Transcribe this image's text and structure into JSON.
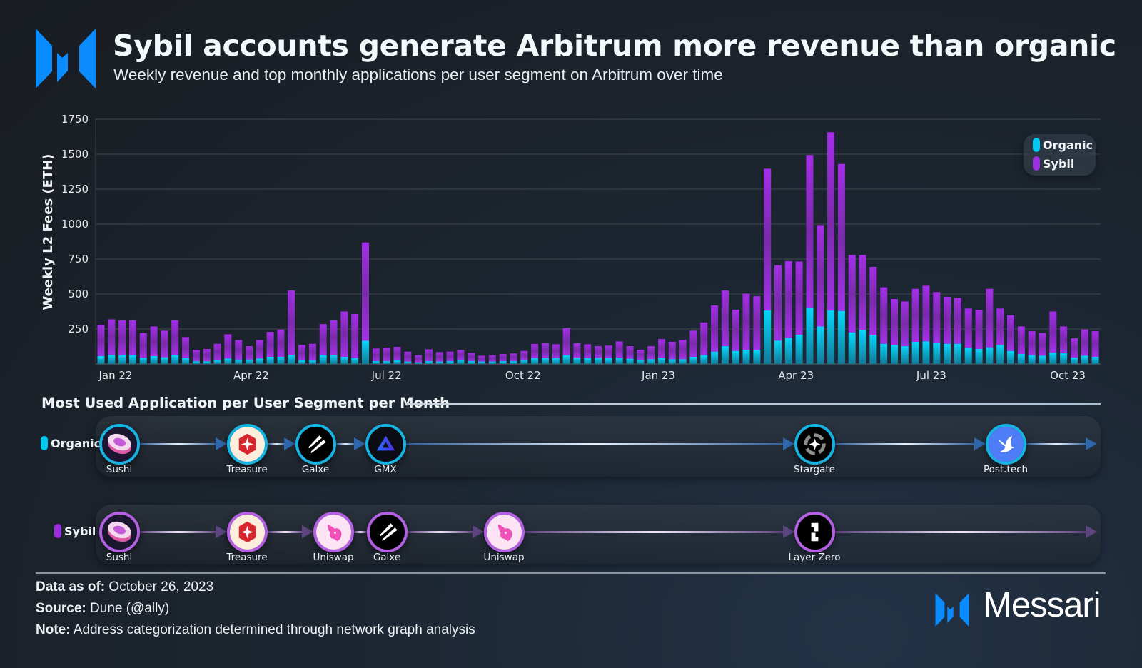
{
  "header": {
    "title": "Sybil accounts generate Arbitrum more revenue than organic",
    "subtitle": "Weekly revenue and top monthly applications per user segment on Arbitrum over time"
  },
  "colors": {
    "organic": "#00c8f0",
    "sybil": "#9b30e0",
    "brand": "#1a8cff"
  },
  "chart_data": {
    "type": "bar",
    "stacked": true,
    "ylabel": "Weekly L2 Fees (ETH)",
    "ylim": [
      0,
      1750
    ],
    "yticks": [
      "250",
      "500",
      "750",
      "1000",
      "1250",
      "1500",
      "1750"
    ],
    "xticks": [
      "Jan 22",
      "Apr 22",
      "Jul 22",
      "Oct 22",
      "Jan 23",
      "Apr 23",
      "Jul 23",
      "Oct 23"
    ],
    "grid": true,
    "legend_position": "top-right",
    "series": [
      {
        "name": "Organic",
        "values": [
          56,
          65,
          61,
          61,
          44,
          56,
          48,
          61,
          41,
          19,
          19,
          27,
          39,
          32,
          32,
          39,
          51,
          51,
          65,
          25,
          25,
          61,
          65,
          51,
          42,
          166,
          20,
          20,
          25,
          17,
          12,
          20,
          17,
          20,
          31,
          20,
          17,
          17,
          20,
          20,
          31,
          42,
          42,
          42,
          63,
          46,
          42,
          46,
          42,
          46,
          37,
          31,
          34,
          42,
          34,
          34,
          51,
          63,
          88,
          127,
          93,
          102,
          97,
          382,
          166,
          187,
          209,
          399,
          268,
          382,
          379,
          226,
          243,
          209,
          144,
          136,
          127,
          158,
          161,
          153,
          144,
          144,
          115,
          107,
          119,
          136,
          93,
          71,
          63,
          59,
          82,
          76,
          46,
          59,
          51
        ]
      },
      {
        "name": "Sybil",
        "values": [
          224,
          254,
          250,
          250,
          177,
          212,
          190,
          250,
          151,
          83,
          88,
          117,
          173,
          139,
          95,
          132,
          178,
          195,
          460,
          111,
          119,
          224,
          246,
          324,
          315,
          703,
          90,
          97,
          97,
          71,
          51,
          85,
          68,
          68,
          69,
          60,
          42,
          46,
          51,
          55,
          62,
          101,
          106,
          99,
          192,
          102,
          99,
          81,
          89,
          115,
          90,
          71,
          93,
          136,
          124,
          139,
          187,
          234,
          330,
          398,
          295,
          401,
          387,
          1014,
          540,
          548,
          523,
          1095,
          725,
          1275,
          1051,
          553,
          536,
          485,
          404,
          328,
          320,
          379,
          398,
          361,
          336,
          328,
          281,
          280,
          418,
          260,
          255,
          197,
          171,
          162,
          293,
          192,
          137,
          187,
          183
        ]
      }
    ]
  },
  "legend": {
    "organic": "Organic",
    "sybil": "Sybil"
  },
  "apps_section": {
    "title": "Most Used Application per User Segment per Month",
    "organic": {
      "label": "Organic",
      "apps": [
        {
          "name": "Sushi",
          "icon": "sushi-icon"
        },
        {
          "name": "Treasure",
          "icon": "treasure-icon"
        },
        {
          "name": "Galxe",
          "icon": "galxe-icon"
        },
        {
          "name": "GMX",
          "icon": "gmx-icon"
        },
        {
          "name": "Stargate",
          "icon": "stargate-icon"
        },
        {
          "name": "Post.tech",
          "icon": "posttech-icon"
        }
      ]
    },
    "sybil": {
      "label": "Sybil",
      "apps": [
        {
          "name": "Sushi",
          "icon": "sushi-icon"
        },
        {
          "name": "Treasure",
          "icon": "treasure-icon"
        },
        {
          "name": "Uniswap",
          "icon": "uniswap-icon"
        },
        {
          "name": "Galxe",
          "icon": "galxe-icon"
        },
        {
          "name": "Uniswap",
          "icon": "uniswap-icon"
        },
        {
          "name": "Layer Zero",
          "icon": "layerzero-icon"
        }
      ]
    }
  },
  "footer": {
    "data_as_of_label": "Data as of:",
    "data_as_of": "October 26, 2023",
    "source_label": "Source:",
    "source": "Dune (@ally)",
    "note_label": "Note:",
    "note": "Address categorization determined through network graph analysis",
    "brand": "Messari"
  }
}
